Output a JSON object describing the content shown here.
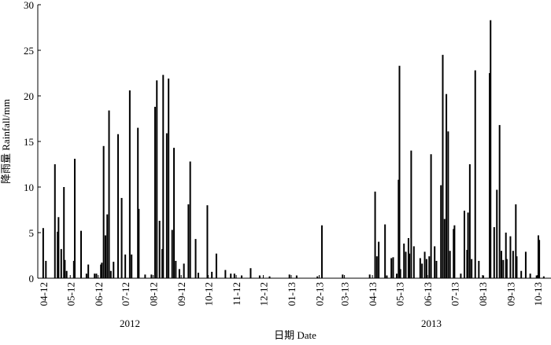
{
  "chart_data": {
    "type": "bar",
    "x_label": "日期 Date",
    "y_label": "降雨量 Rainfall/mm",
    "annotations": [
      "2012",
      "2013"
    ],
    "color": "#000000",
    "grid": false,
    "ylim": [
      0,
      30
    ],
    "yticks": [
      0,
      5,
      10,
      15,
      20,
      25,
      30
    ],
    "xlim": [
      -6,
      563
    ],
    "xticks": [
      {
        "value": 0,
        "label": "04-12"
      },
      {
        "value": 30,
        "label": "05-12"
      },
      {
        "value": 61,
        "label": "06-12"
      },
      {
        "value": 91,
        "label": "07-12"
      },
      {
        "value": 122,
        "label": "08-12"
      },
      {
        "value": 153,
        "label": "09-12"
      },
      {
        "value": 183,
        "label": "10-12"
      },
      {
        "value": 214,
        "label": "11-12"
      },
      {
        "value": 244,
        "label": "12-12"
      },
      {
        "value": 275,
        "label": "01-13"
      },
      {
        "value": 306,
        "label": "02-13"
      },
      {
        "value": 334,
        "label": "03-13"
      },
      {
        "value": 365,
        "label": "04-13"
      },
      {
        "value": 395,
        "label": "05-13"
      },
      {
        "value": 426,
        "label": "06-13"
      },
      {
        "value": 456,
        "label": "07-13"
      },
      {
        "value": 487,
        "label": "08-13"
      },
      {
        "value": 518,
        "label": "09-13"
      },
      {
        "value": 548,
        "label": "10-13"
      }
    ],
    "x": [
      0,
      3,
      13,
      16,
      17,
      20,
      23,
      24,
      26,
      34,
      35,
      42,
      48,
      50,
      57,
      59,
      64,
      65,
      67,
      69,
      71,
      73,
      75,
      78,
      83,
      87,
      91,
      96,
      98,
      105,
      106,
      113,
      120,
      124,
      126,
      129,
      132,
      133,
      137,
      139,
      143,
      145,
      147,
      151,
      156,
      161,
      163,
      169,
      172,
      182,
      187,
      192,
      202,
      208,
      212,
      220,
      230,
      240,
      251,
      273,
      281,
      304,
      309,
      332,
      362,
      368,
      370,
      372,
      379,
      381,
      386,
      388,
      392,
      394,
      395,
      396,
      400,
      402,
      405,
      406,
      408,
      411,
      418,
      420,
      423,
      425,
      428,
      430,
      434,
      436,
      441,
      443,
      445,
      447,
      449,
      451,
      455,
      456,
      463,
      467,
      470,
      471,
      473,
      475,
      479,
      483,
      488,
      495,
      496,
      500,
      503,
      506,
      508,
      510,
      513,
      514,
      518,
      521,
      524,
      525,
      530,
      535,
      540,
      547,
      549,
      550,
      555
    ],
    "values": [
      5.5,
      1.9,
      12.5,
      5.1,
      6.7,
      3.2,
      10,
      2.0,
      0.8,
      1.9,
      13.1,
      5.2,
      0.5,
      1.5,
      0.5,
      0.5,
      1.5,
      1.7,
      14.5,
      4.7,
      7.0,
      18.4,
      0.8,
      1.8,
      15.8,
      8.8,
      2.6,
      20.6,
      2.6,
      16.5,
      7.6,
      0.4,
      0.4,
      18.8,
      21.7,
      6.3,
      3.2,
      22.3,
      15.9,
      21.9,
      5.3,
      14.3,
      1.9,
      1.0,
      1.6,
      8.1,
      12.8,
      4.3,
      0.6,
      8.0,
      0.7,
      2.7,
      0.9,
      0.5,
      0.5,
      0.3,
      1.1,
      0.3,
      0.2,
      0.4,
      0.3,
      0.2,
      5.8,
      0.4,
      0.4,
      9.5,
      2.4,
      4.0,
      5.9,
      0.3,
      2.2,
      2.3,
      0.5,
      10.8,
      23.3,
      1.0,
      3.8,
      2.9,
      4.4,
      2.7,
      14.0,
      3.5,
      2.2,
      1.6,
      2.9,
      2.1,
      2.4,
      13.6,
      3.5,
      1.9,
      10.2,
      24.5,
      6.5,
      20.2,
      16.1,
      3.0,
      5.4,
      5.8,
      0.5,
      7.4,
      3.1,
      7.2,
      12.5,
      2.1,
      22.8,
      1.9,
      0.3,
      22.5,
      28.3,
      5.6,
      9.7,
      16.8,
      3.0,
      2.0,
      5.0,
      2.1,
      4.6,
      3.0,
      8.1,
      2.4,
      0.8,
      2.9,
      0.5,
      0.3,
      4.7,
      4.2,
      0.2
    ]
  }
}
